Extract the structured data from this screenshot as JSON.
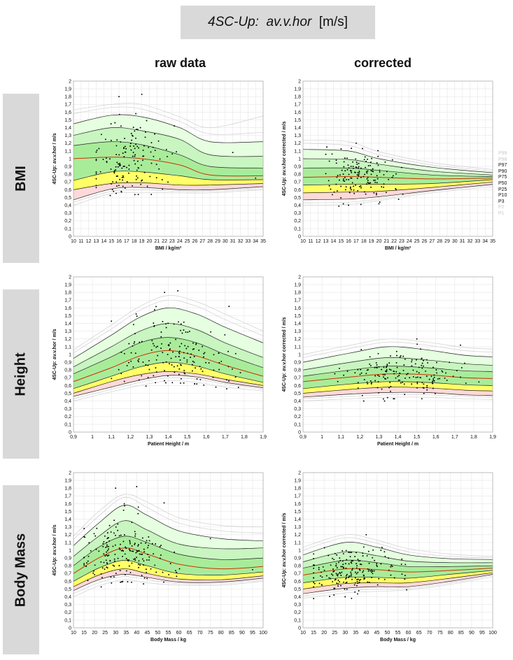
{
  "title": {
    "prefix": "4SC-Up:",
    "var": "av.v.hor",
    "unit": "[m/s]"
  },
  "columns": {
    "raw": "raw data",
    "corrected": "corrected"
  },
  "rows": [
    "BMI",
    "Height",
    "Body Mass"
  ],
  "legend": [
    "P99",
    "P98",
    "P97",
    "P90",
    "P75",
    "P50",
    "P25",
    "P10",
    "P3",
    "P2",
    "P1"
  ],
  "legend_colors": [
    "#c8c8c8",
    "#c8c8c8",
    "#111111",
    "#111111",
    "#111111",
    "#111111",
    "#111111",
    "#111111",
    "#111111",
    "#c8c8c8",
    "#c8c8c8"
  ],
  "colors": {
    "band_outer": "#e6ffe0",
    "band_mid": "#c8f5c0",
    "band_inner": "#a8ec9a",
    "band_p10_p25": "#ffff66",
    "band_p3_p10": "#ffd9d9",
    "median": "#cc3300",
    "gridline": "#e6e6e6"
  },
  "chart_data": [
    {
      "id": "bmi-raw",
      "type": "scatter",
      "xlabel": "BMI  / kg/m²",
      "ylabel": "4SC-Up: av.v.hor  / m/s",
      "xlim": [
        10,
        35
      ],
      "ylim": [
        0,
        2
      ],
      "xticks": [
        "10",
        "11",
        "12",
        "13",
        "14",
        "15",
        "16",
        "17",
        "18",
        "19",
        "20",
        "21",
        "22",
        "23",
        "24",
        "25",
        "26",
        "27",
        "28",
        "29",
        "30",
        "31",
        "32",
        "33",
        "34",
        "35"
      ],
      "yticks": [
        "0",
        "0,1",
        "0,2",
        "0,3",
        "0,4",
        "0,5",
        "0,6",
        "0,7",
        "0,8",
        "0,9",
        "1",
        "1,1",
        "1,2",
        "1,3",
        "1,4",
        "1,5",
        "1,6",
        "1,7",
        "1,8",
        "1,9",
        "2"
      ],
      "x": [
        10,
        15,
        19,
        24,
        28,
        35
      ],
      "percentiles": {
        "P1": [
          0.4,
          0.55,
          0.56,
          0.56,
          0.56,
          0.6
        ],
        "P2": [
          0.44,
          0.58,
          0.6,
          0.58,
          0.58,
          0.62
        ],
        "P3": [
          0.47,
          0.61,
          0.63,
          0.6,
          0.6,
          0.64
        ],
        "P10": [
          0.6,
          0.68,
          0.69,
          0.66,
          0.66,
          0.68
        ],
        "P25": [
          0.72,
          0.83,
          0.83,
          0.78,
          0.73,
          0.73
        ],
        "P50": [
          1.0,
          1.02,
          1.0,
          0.92,
          0.79,
          0.78
        ],
        "P75": [
          1.17,
          1.22,
          1.18,
          1.05,
          0.9,
          0.88
        ],
        "P90": [
          1.3,
          1.4,
          1.36,
          1.25,
          1.05,
          1.03
        ],
        "P97": [
          1.45,
          1.56,
          1.54,
          1.4,
          1.22,
          1.22
        ],
        "P98": [
          1.58,
          1.66,
          1.64,
          1.48,
          1.32,
          1.34
        ],
        "P99": [
          1.63,
          1.7,
          1.7,
          1.54,
          1.4,
          1.55
        ]
      },
      "scatter": {
        "seed": 11,
        "n": 150,
        "x_mean": 17,
        "x_sd": 2.2,
        "xmin": 13,
        "xmax": 33,
        "extras": [
          [
            16,
            1.8
          ],
          [
            19,
            1.83
          ],
          [
            31,
            1.08
          ],
          [
            34,
            0.75
          ]
        ]
      }
    },
    {
      "id": "bmi-corr",
      "type": "scatter",
      "xlabel": "BMI  / kg/m²",
      "ylabel": "4SC-Up: av.v.hor corrected  / m/s",
      "xlim": [
        10,
        35
      ],
      "ylim": [
        0,
        2
      ],
      "xticks": [
        "10",
        "11",
        "12",
        "13",
        "14",
        "15",
        "16",
        "17",
        "18",
        "19",
        "20",
        "21",
        "22",
        "23",
        "24",
        "25",
        "26",
        "27",
        "28",
        "29",
        "30",
        "31",
        "32",
        "33",
        "34",
        "35"
      ],
      "yticks": [
        "0",
        "0,1",
        "0,2",
        "0,3",
        "0,4",
        "0,5",
        "0,6",
        "0,7",
        "0,8",
        "0,9",
        "1",
        "1,1",
        "1,2",
        "1,3",
        "1,4",
        "1,5",
        "1,6",
        "1,7",
        "1,8",
        "1,9",
        "2"
      ],
      "x": [
        10,
        16,
        20,
        27,
        35
      ],
      "percentiles": {
        "P1": [
          0.4,
          0.41,
          0.46,
          0.56,
          0.64
        ],
        "P2": [
          0.43,
          0.44,
          0.48,
          0.58,
          0.66
        ],
        "P3": [
          0.47,
          0.48,
          0.51,
          0.59,
          0.67
        ],
        "P10": [
          0.56,
          0.57,
          0.58,
          0.63,
          0.7
        ],
        "P25": [
          0.66,
          0.67,
          0.67,
          0.68,
          0.73
        ],
        "P50": [
          0.76,
          0.77,
          0.76,
          0.74,
          0.75
        ],
        "P75": [
          0.88,
          0.88,
          0.85,
          0.79,
          0.77
        ],
        "P90": [
          1.0,
          0.99,
          0.93,
          0.84,
          0.79
        ],
        "P97": [
          1.12,
          1.1,
          1.0,
          0.89,
          0.82
        ],
        "P98": [
          1.2,
          1.17,
          1.05,
          0.92,
          0.84
        ],
        "P99": [
          1.24,
          1.22,
          1.09,
          0.95,
          0.86
        ]
      },
      "scatter": {
        "seed": 23,
        "n": 150,
        "x_mean": 17,
        "x_sd": 2.0,
        "xmin": 13,
        "xmax": 33,
        "extras": [
          [
            17,
            1.2
          ],
          [
            16,
            0.4
          ],
          [
            20,
            0.42
          ]
        ]
      }
    },
    {
      "id": "height-raw",
      "type": "scatter",
      "xlabel": "Patient Height  / m",
      "ylabel": "4SC-Up: av.v.hor  / m/s",
      "xlim": [
        0.9,
        1.9
      ],
      "ylim": [
        0,
        2
      ],
      "xticks": [
        "0,9",
        "1",
        "1,1",
        "1,2",
        "1,3",
        "1,4",
        "1,5",
        "1,6",
        "1,7",
        "1,8",
        "1,9"
      ],
      "yticks": [
        "0",
        "0,1",
        "0,2",
        "0,3",
        "0,4",
        "0,5",
        "0,6",
        "0,7",
        "0,8",
        "0,9",
        "1",
        "1,1",
        "1,2",
        "1,3",
        "1,4",
        "1,5",
        "1,6",
        "1,7",
        "1,8",
        "1,9",
        "2"
      ],
      "x": [
        0.9,
        1.1,
        1.25,
        1.4,
        1.55,
        1.7,
        1.9
      ],
      "percentiles": {
        "P1": [
          0.4,
          0.52,
          0.6,
          0.66,
          0.64,
          0.58,
          0.53
        ],
        "P2": [
          0.43,
          0.55,
          0.64,
          0.7,
          0.68,
          0.62,
          0.55
        ],
        "P3": [
          0.46,
          0.58,
          0.67,
          0.73,
          0.71,
          0.64,
          0.57
        ],
        "P10": [
          0.5,
          0.65,
          0.74,
          0.78,
          0.75,
          0.68,
          0.6
        ],
        "P25": [
          0.56,
          0.72,
          0.84,
          0.9,
          0.85,
          0.75,
          0.64
        ],
        "P50": [
          0.65,
          0.83,
          0.98,
          1.05,
          0.98,
          0.86,
          0.72
        ],
        "P75": [
          0.75,
          0.97,
          1.15,
          1.22,
          1.15,
          1.0,
          0.83
        ],
        "P90": [
          0.84,
          1.1,
          1.3,
          1.4,
          1.32,
          1.15,
          0.96
        ],
        "P97": [
          0.95,
          1.25,
          1.48,
          1.6,
          1.52,
          1.35,
          1.15
        ],
        "P98": [
          1.02,
          1.33,
          1.57,
          1.7,
          1.62,
          1.45,
          1.24
        ],
        "P99": [
          1.06,
          1.38,
          1.62,
          1.76,
          1.68,
          1.52,
          1.3
        ]
      },
      "scatter": {
        "seed": 37,
        "n": 170,
        "x_mean": 1.4,
        "x_sd": 0.15,
        "xmin": 1.0,
        "xmax": 1.85,
        "extras": [
          [
            1.38,
            1.8
          ],
          [
            1.45,
            1.82
          ],
          [
            1.72,
            1.62
          ],
          [
            1.1,
            1.43
          ]
        ]
      }
    },
    {
      "id": "height-corr",
      "type": "scatter",
      "xlabel": "Patient Height  / m",
      "ylabel": "4SC-Up: av.v.hor corrected  / m/s",
      "xlim": [
        0.9,
        1.9
      ],
      "ylim": [
        0,
        2
      ],
      "xticks": [
        "0,9",
        "1",
        "1,1",
        "1,2",
        "1,3",
        "1,4",
        "1,5",
        "1,6",
        "1,7",
        "1,8",
        "1,9"
      ],
      "yticks": [
        "0",
        "0,1",
        "0,2",
        "0,3",
        "0,4",
        "0,5",
        "0,6",
        "0,7",
        "0,8",
        "0,9",
        "1",
        "1,1",
        "1,2",
        "1,3",
        "1,4",
        "1,5",
        "1,6",
        "1,7",
        "1,8",
        "1,9",
        "2"
      ],
      "x": [
        0.9,
        1.15,
        1.35,
        1.55,
        1.75,
        1.9
      ],
      "percentiles": {
        "P1": [
          0.4,
          0.43,
          0.45,
          0.45,
          0.43,
          0.42
        ],
        "P2": [
          0.43,
          0.46,
          0.48,
          0.48,
          0.46,
          0.45
        ],
        "P3": [
          0.45,
          0.49,
          0.51,
          0.51,
          0.48,
          0.47
        ],
        "P10": [
          0.5,
          0.55,
          0.58,
          0.57,
          0.54,
          0.53
        ],
        "P25": [
          0.56,
          0.62,
          0.65,
          0.64,
          0.61,
          0.6
        ],
        "P50": [
          0.65,
          0.71,
          0.75,
          0.74,
          0.7,
          0.69
        ],
        "P75": [
          0.72,
          0.8,
          0.85,
          0.83,
          0.79,
          0.78
        ],
        "P90": [
          0.8,
          0.9,
          0.96,
          0.93,
          0.88,
          0.86
        ],
        "P97": [
          0.9,
          1.02,
          1.1,
          1.06,
          0.99,
          0.97
        ],
        "P98": [
          0.96,
          1.08,
          1.16,
          1.12,
          1.05,
          1.03
        ],
        "P99": [
          1.0,
          1.12,
          1.2,
          1.16,
          1.09,
          1.07
        ]
      },
      "scatter": {
        "seed": 53,
        "n": 170,
        "x_mean": 1.4,
        "x_sd": 0.15,
        "xmin": 1.0,
        "xmax": 1.85,
        "extras": [
          [
            1.5,
            1.2
          ],
          [
            1.73,
            1.12
          ],
          [
            1.22,
            0.4
          ],
          [
            1.33,
            0.4
          ]
        ]
      }
    },
    {
      "id": "mass-raw",
      "type": "scatter",
      "xlabel": "Body Mass  / kg",
      "ylabel": "4SC-Up: av.v.hor  / m/s",
      "xlim": [
        10,
        100
      ],
      "ylim": [
        0,
        2
      ],
      "xticks": [
        "10",
        "15",
        "20",
        "25",
        "30",
        "35",
        "40",
        "45",
        "50",
        "55",
        "60",
        "65",
        "70",
        "75",
        "80",
        "85",
        "90",
        "95",
        "100"
      ],
      "yticks": [
        "0",
        "0,1",
        "0,2",
        "0,3",
        "0,4",
        "0,5",
        "0,6",
        "0,7",
        "0,8",
        "0,9",
        "1",
        "1,1",
        "1,2",
        "1,3",
        "1,4",
        "1,5",
        "1,6",
        "1,7",
        "1,8",
        "1,9",
        "2"
      ],
      "x": [
        10,
        22,
        34,
        45,
        60,
        80,
        100
      ],
      "percentiles": {
        "P1": [
          0.4,
          0.54,
          0.62,
          0.58,
          0.55,
          0.55,
          0.6
        ],
        "P2": [
          0.44,
          0.58,
          0.66,
          0.62,
          0.57,
          0.57,
          0.62
        ],
        "P3": [
          0.48,
          0.62,
          0.69,
          0.65,
          0.59,
          0.59,
          0.64
        ],
        "P10": [
          0.53,
          0.68,
          0.76,
          0.7,
          0.63,
          0.62,
          0.67
        ],
        "P25": [
          0.6,
          0.77,
          0.87,
          0.8,
          0.7,
          0.68,
          0.72
        ],
        "P50": [
          0.7,
          0.9,
          1.03,
          0.95,
          0.82,
          0.76,
          0.79
        ],
        "P75": [
          0.8,
          1.04,
          1.18,
          1.1,
          0.95,
          0.88,
          0.9
        ],
        "P90": [
          0.92,
          1.18,
          1.38,
          1.26,
          1.08,
          1.02,
          1.03
        ],
        "P97": [
          1.06,
          1.35,
          1.58,
          1.45,
          1.25,
          1.15,
          1.12
        ],
        "P98": [
          1.14,
          1.44,
          1.68,
          1.55,
          1.35,
          1.25,
          1.22
        ],
        "P99": [
          1.18,
          1.5,
          1.72,
          1.62,
          1.42,
          1.32,
          1.3
        ]
      },
      "scatter": {
        "seed": 71,
        "n": 190,
        "x_mean": 34,
        "x_sd": 9,
        "xmin": 15,
        "xmax": 95,
        "extras": [
          [
            30,
            1.8
          ],
          [
            40,
            1.82
          ],
          [
            53,
            1.61
          ],
          [
            75,
            1.15
          ],
          [
            95,
            0.75
          ]
        ]
      }
    },
    {
      "id": "mass-corr",
      "type": "scatter",
      "xlabel": "Body Mass  / kg",
      "ylabel": "4SC-Up: av.v.hor corrected  / m/s",
      "xlim": [
        10,
        100
      ],
      "ylim": [
        0,
        2
      ],
      "xticks": [
        "10",
        "15",
        "20",
        "25",
        "30",
        "35",
        "40",
        "45",
        "50",
        "55",
        "60",
        "65",
        "70",
        "75",
        "80",
        "85",
        "90",
        "95",
        "100"
      ],
      "yticks": [
        "0",
        "0,1",
        "0,2",
        "0,3",
        "0,4",
        "0,5",
        "0,6",
        "0,7",
        "0,8",
        "0,9",
        "1",
        "1,1",
        "1,2",
        "1,3",
        "1,4",
        "1,5",
        "1,6",
        "1,7",
        "1,8",
        "1,9",
        "2"
      ],
      "x": [
        10,
        30,
        45,
        60,
        80,
        100
      ],
      "percentiles": {
        "P1": [
          0.38,
          0.45,
          0.47,
          0.49,
          0.56,
          0.66
        ],
        "P2": [
          0.41,
          0.48,
          0.5,
          0.51,
          0.58,
          0.68
        ],
        "P3": [
          0.44,
          0.51,
          0.53,
          0.53,
          0.6,
          0.69
        ],
        "P10": [
          0.5,
          0.57,
          0.58,
          0.58,
          0.64,
          0.71
        ],
        "P25": [
          0.58,
          0.65,
          0.65,
          0.64,
          0.69,
          0.74
        ],
        "P50": [
          0.68,
          0.76,
          0.75,
          0.72,
          0.74,
          0.77
        ],
        "P75": [
          0.77,
          0.87,
          0.84,
          0.79,
          0.79,
          0.8
        ],
        "P90": [
          0.85,
          0.98,
          0.93,
          0.86,
          0.84,
          0.84
        ],
        "P97": [
          0.94,
          1.1,
          1.04,
          0.94,
          0.89,
          0.88
        ],
        "P98": [
          1.0,
          1.16,
          1.09,
          0.98,
          0.92,
          0.9
        ],
        "P99": [
          1.04,
          1.2,
          1.13,
          1.02,
          0.95,
          0.92
        ]
      },
      "scatter": {
        "seed": 89,
        "n": 190,
        "x_mean": 33,
        "x_sd": 9,
        "xmin": 15,
        "xmax": 95,
        "extras": [
          [
            40,
            1.2
          ],
          [
            30,
            0.4
          ],
          [
            33,
            0.38
          ]
        ]
      }
    }
  ]
}
